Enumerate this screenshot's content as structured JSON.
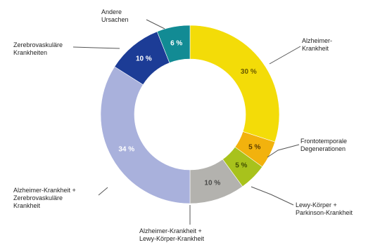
{
  "chart_data": {
    "type": "pie",
    "donut": true,
    "slices": [
      {
        "label": "Alzheimer-\nKrankheit",
        "value": 30,
        "display": "30 %",
        "color": "#f3dc08",
        "text_color": "#6a5a00"
      },
      {
        "label": "Frontotemporale\nDegenerationen",
        "value": 5,
        "display": "5 %",
        "color": "#f2b20d",
        "text_color": "#5a3c00"
      },
      {
        "label": "Lewy-Körper +\nParkinson-Krankheit",
        "value": 5,
        "display": "5 %",
        "color": "#a8c21c",
        "text_color": "#3f4d00"
      },
      {
        "label": "Alzheimer-Krankheit +\nLewy-Körper-Krankheit",
        "value": 10,
        "display": "10 %",
        "color": "#b3b2ae",
        "text_color": "#4a4a48"
      },
      {
        "label": "Alzheimer-Krankheit +\nZerebrovaskuläre\nKrankheit",
        "value": 34,
        "display": "34 %",
        "color": "#a9b1dc",
        "text_color": "#ffffff"
      },
      {
        "label": "Zerebrovaskuläre\nKrankheiten",
        "value": 10,
        "display": "10 %",
        "color": "#1c3c96",
        "text_color": "#ffffff"
      },
      {
        "label": "Andere\nUrsachen",
        "value": 6,
        "display": "6 %",
        "color": "#128b94",
        "text_color": "#ffffff"
      }
    ]
  }
}
